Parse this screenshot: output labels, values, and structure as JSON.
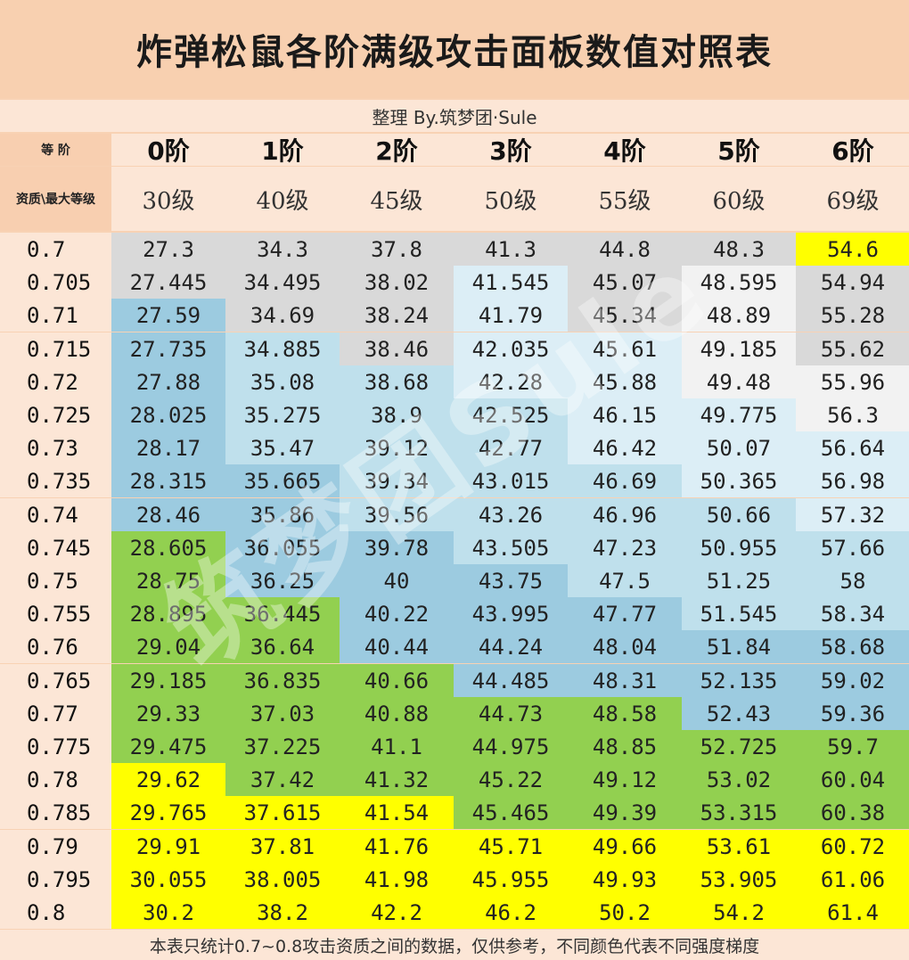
{
  "title": "炸弹松鼠各阶满级攻击面板数值对照表",
  "credit": "整理 By.筑梦团·Sule",
  "header": {
    "tier_label": "等 阶",
    "level_label": "资质\\最大等级",
    "tiers": [
      "0阶",
      "1阶",
      "2阶",
      "3阶",
      "4阶",
      "5阶",
      "6阶"
    ],
    "levels": [
      "30级",
      "40级",
      "45级",
      "50级",
      "55级",
      "60级",
      "69级"
    ]
  },
  "rows": [
    {
      "label": "0.7",
      "values": [
        "27.3",
        "34.3",
        "37.8",
        "41.3",
        "44.8",
        "48.3",
        "54.6"
      ],
      "tiers": [
        0,
        0,
        0,
        0,
        0,
        0,
        5
      ]
    },
    {
      "label": "0.705",
      "values": [
        "27.445",
        "34.495",
        "38.02",
        "41.545",
        "45.07",
        "48.595",
        "54.94"
      ],
      "tiers": [
        0,
        0,
        0,
        1,
        0,
        6,
        0
      ]
    },
    {
      "label": "0.71",
      "values": [
        "27.59",
        "34.69",
        "38.24",
        "41.79",
        "45.34",
        "48.89",
        "55.28"
      ],
      "tiers": [
        3,
        0,
        0,
        1,
        0,
        6,
        0
      ]
    },
    {
      "label": "0.715",
      "values": [
        "27.735",
        "34.885",
        "38.46",
        "42.035",
        "45.61",
        "49.185",
        "55.62"
      ],
      "tiers": [
        3,
        2,
        0,
        1,
        1,
        6,
        0
      ]
    },
    {
      "label": "0.72",
      "values": [
        "27.88",
        "35.08",
        "38.68",
        "42.28",
        "45.88",
        "49.48",
        "55.96"
      ],
      "tiers": [
        3,
        2,
        2,
        1,
        1,
        6,
        6
      ]
    },
    {
      "label": "0.725",
      "values": [
        "28.025",
        "35.275",
        "38.9",
        "42.525",
        "46.15",
        "49.775",
        "56.3"
      ],
      "tiers": [
        3,
        2,
        2,
        2,
        1,
        1,
        6
      ]
    },
    {
      "label": "0.73",
      "values": [
        "28.17",
        "35.47",
        "39.12",
        "42.77",
        "46.42",
        "50.07",
        "56.64"
      ],
      "tiers": [
        3,
        2,
        2,
        2,
        1,
        1,
        1
      ]
    },
    {
      "label": "0.735",
      "values": [
        "28.315",
        "35.665",
        "39.34",
        "43.015",
        "46.69",
        "50.365",
        "56.98"
      ],
      "tiers": [
        3,
        3,
        2,
        2,
        2,
        1,
        1
      ]
    },
    {
      "label": "0.74",
      "values": [
        "28.46",
        "35.86",
        "39.56",
        "43.26",
        "46.96",
        "50.66",
        "57.32"
      ],
      "tiers": [
        3,
        3,
        2,
        2,
        2,
        2,
        1
      ]
    },
    {
      "label": "0.745",
      "values": [
        "28.605",
        "36.055",
        "39.78",
        "43.505",
        "47.23",
        "50.955",
        "57.66"
      ],
      "tiers": [
        4,
        3,
        3,
        2,
        2,
        2,
        2
      ]
    },
    {
      "label": "0.75",
      "values": [
        "28.75",
        "36.25",
        "40",
        "43.75",
        "47.5",
        "51.25",
        "58"
      ],
      "tiers": [
        4,
        3,
        3,
        3,
        2,
        2,
        2
      ]
    },
    {
      "label": "0.755",
      "values": [
        "28.895",
        "36.445",
        "40.22",
        "43.995",
        "47.77",
        "51.545",
        "58.34"
      ],
      "tiers": [
        4,
        4,
        3,
        3,
        3,
        2,
        2
      ]
    },
    {
      "label": "0.76",
      "values": [
        "29.04",
        "36.64",
        "40.44",
        "44.24",
        "48.04",
        "51.84",
        "58.68"
      ],
      "tiers": [
        4,
        4,
        3,
        3,
        3,
        3,
        3
      ]
    },
    {
      "label": "0.765",
      "values": [
        "29.185",
        "36.835",
        "40.66",
        "44.485",
        "48.31",
        "52.135",
        "59.02"
      ],
      "tiers": [
        4,
        4,
        4,
        3,
        3,
        3,
        3
      ]
    },
    {
      "label": "0.77",
      "values": [
        "29.33",
        "37.03",
        "40.88",
        "44.73",
        "48.58",
        "52.43",
        "59.36"
      ],
      "tiers": [
        4,
        4,
        4,
        4,
        4,
        3,
        3
      ]
    },
    {
      "label": "0.775",
      "values": [
        "29.475",
        "37.225",
        "41.1",
        "44.975",
        "48.85",
        "52.725",
        "59.7"
      ],
      "tiers": [
        4,
        4,
        4,
        4,
        4,
        4,
        4
      ]
    },
    {
      "label": "0.78",
      "values": [
        "29.62",
        "37.42",
        "41.32",
        "45.22",
        "49.12",
        "53.02",
        "60.04"
      ],
      "tiers": [
        5,
        4,
        4,
        4,
        4,
        4,
        4
      ]
    },
    {
      "label": "0.785",
      "values": [
        "29.765",
        "37.615",
        "41.54",
        "45.465",
        "49.39",
        "53.315",
        "60.38"
      ],
      "tiers": [
        5,
        5,
        5,
        4,
        4,
        4,
        4
      ]
    },
    {
      "label": "0.79",
      "values": [
        "29.91",
        "37.81",
        "41.76",
        "45.71",
        "49.66",
        "53.61",
        "60.72"
      ],
      "tiers": [
        5,
        5,
        5,
        5,
        5,
        5,
        5
      ]
    },
    {
      "label": "0.795",
      "values": [
        "30.055",
        "38.005",
        "41.98",
        "45.955",
        "49.93",
        "53.905",
        "61.06"
      ],
      "tiers": [
        5,
        5,
        5,
        5,
        5,
        5,
        5
      ]
    },
    {
      "label": "0.8",
      "values": [
        "30.2",
        "38.2",
        "42.2",
        "46.2",
        "50.2",
        "54.2",
        "61.4"
      ],
      "tiers": [
        5,
        5,
        5,
        5,
        5,
        5,
        5
      ]
    }
  ],
  "palette": [
    "#d9d9d9",
    "#dceef6",
    "#bfe0ec",
    "#9ccbe0",
    "#92d050",
    "#ffff00",
    "#f2f2f2",
    "#a6a6a6"
  ],
  "footer": "本表只统计0.7~0.8攻击资质之间的数据，仅供参考，不同颜色代表不同强度梯度",
  "watermark": "筑梦团Sule"
}
